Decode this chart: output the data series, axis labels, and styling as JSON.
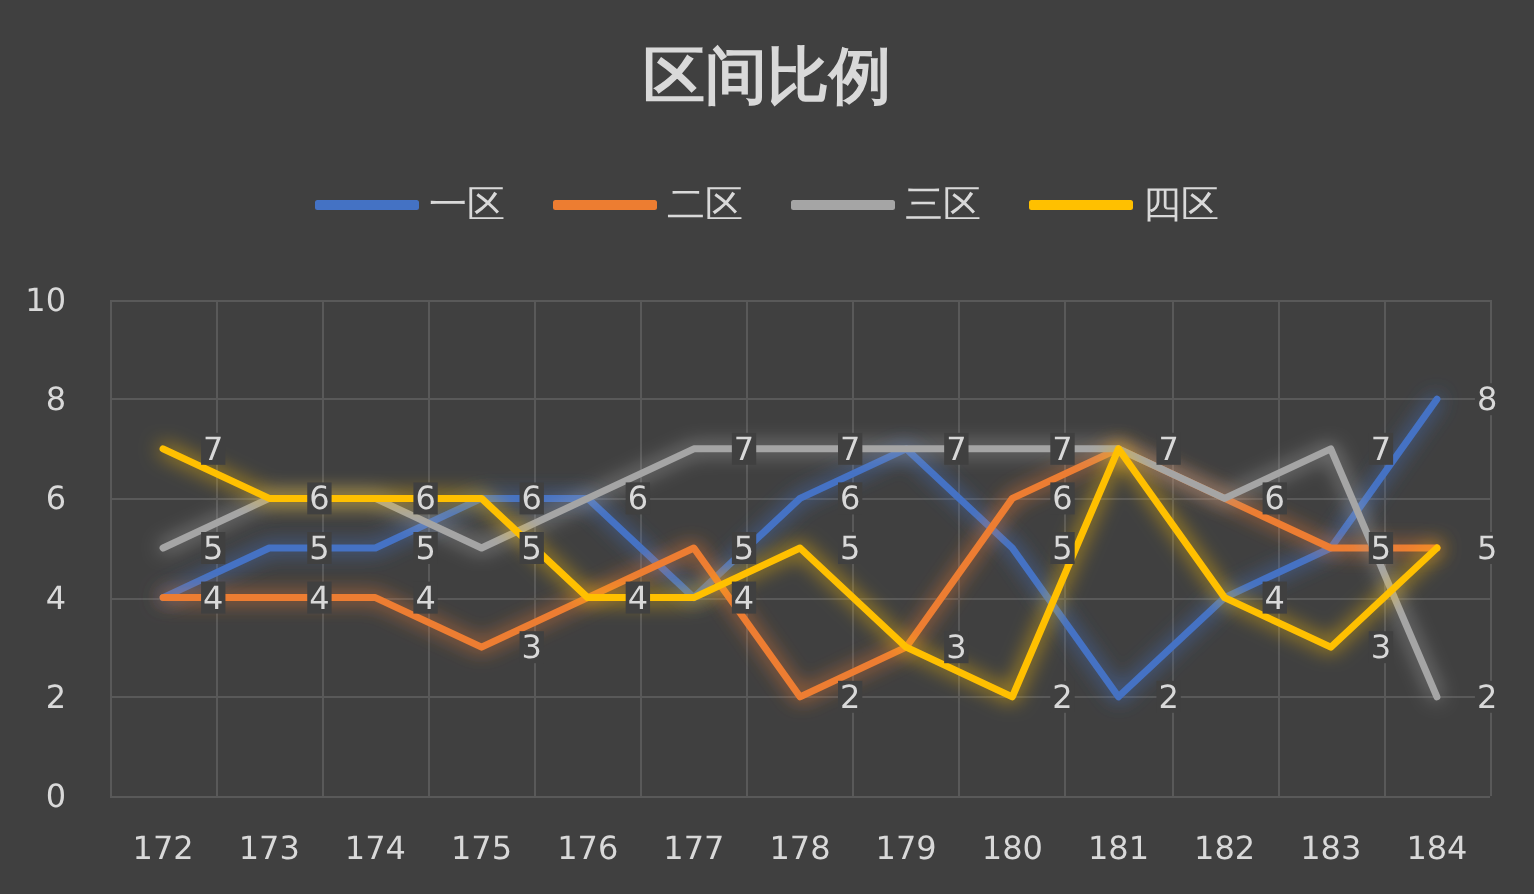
{
  "chart_data": {
    "type": "line",
    "title": "区间比例",
    "categories": [
      "172",
      "173",
      "174",
      "175",
      "176",
      "177",
      "178",
      "179",
      "180",
      "181",
      "182",
      "183",
      "184"
    ],
    "series": [
      {
        "name": "一区",
        "color": "#4472c4",
        "values": [
          4,
          5,
          5,
          6,
          6,
          4,
          6,
          7,
          5,
          2,
          4,
          5,
          8
        ],
        "value_labels": [
          "4",
          "5",
          "5",
          "6",
          "6",
          "4",
          "6",
          "7",
          "5",
          "2",
          "4",
          "5",
          "8"
        ]
      },
      {
        "name": "二区",
        "color": "#ed7d31",
        "values": [
          4,
          4,
          4,
          3,
          4,
          5,
          2,
          3,
          6,
          7,
          6,
          5,
          5
        ],
        "value_labels": [
          null,
          "4",
          "4",
          "3",
          "4",
          "5",
          "2",
          "3",
          "6",
          "7",
          "6",
          null,
          "5"
        ]
      },
      {
        "name": "三区",
        "color": "#a5a5a5",
        "values": [
          5,
          6,
          6,
          5,
          6,
          7,
          7,
          7,
          7,
          7,
          6,
          7,
          2
        ],
        "value_labels": [
          "5",
          "6",
          "6",
          "5",
          null,
          "7",
          "7",
          null,
          "7",
          null,
          null,
          "7",
          "2"
        ]
      },
      {
        "name": "四区",
        "color": "#ffc000",
        "values": [
          7,
          6,
          6,
          6,
          4,
          4,
          5,
          3,
          2,
          7,
          4,
          3,
          5
        ],
        "value_labels": [
          "7",
          null,
          null,
          null,
          null,
          null,
          "5",
          null,
          "2",
          null,
          null,
          "3",
          null
        ]
      }
    ],
    "ylim": [
      0,
      10
    ],
    "yticks": [
      0,
      2,
      4,
      6,
      8,
      10
    ],
    "grid": true,
    "legend": "top",
    "marker": "none",
    "line_style": "solid"
  }
}
